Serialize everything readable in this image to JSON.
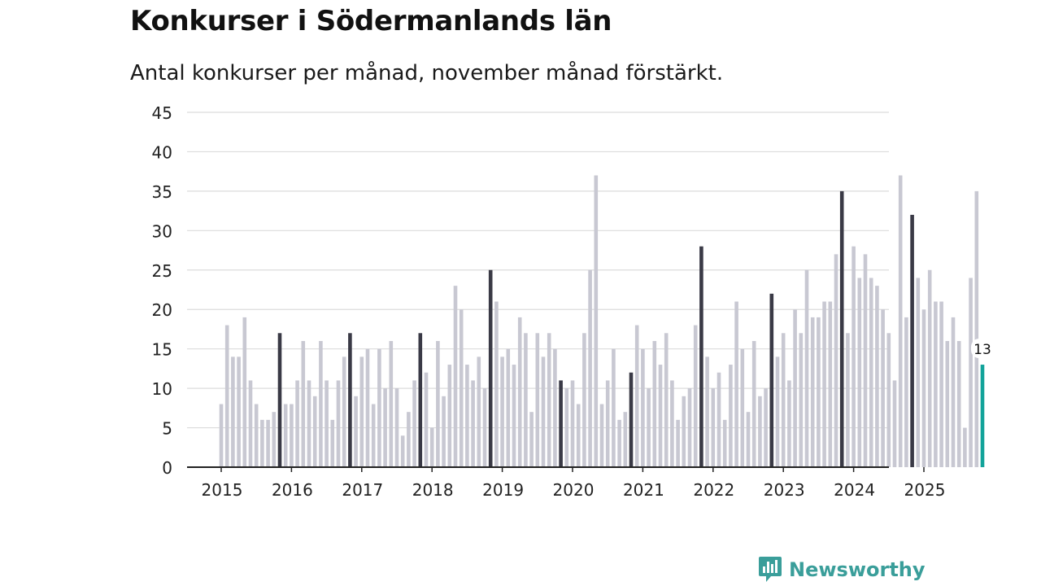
{
  "title": "Konkurser i Södermanlands län",
  "subtitle": "Antal konkurser per månad, november månad förstärkt.",
  "brand": {
    "name": "Newsworthy"
  },
  "colors": {
    "bar_default": "#c8c8d2",
    "bar_highlight": "#3a3a46",
    "bar_current": "#12a39a",
    "grid": "#dcdcdc",
    "axis": "#222222",
    "brand": "#3a9e9a"
  },
  "chart_data": {
    "type": "bar",
    "title": "Konkurser i Södermanlands län",
    "xlabel": "",
    "ylabel": "",
    "ylim": [
      0,
      45
    ],
    "yticks": [
      0,
      5,
      10,
      15,
      20,
      25,
      30,
      35,
      40,
      45
    ],
    "start": "2015-01",
    "highlight_month": "November",
    "x_tick_labels": [
      "2015",
      "2016",
      "2017",
      "2018",
      "2019",
      "2020",
      "2021",
      "2022",
      "2023",
      "2024",
      "2025"
    ],
    "values": [
      8,
      18,
      14,
      14,
      19,
      11,
      8,
      6,
      6,
      7,
      17,
      8,
      8,
      11,
      16,
      11,
      9,
      16,
      11,
      6,
      11,
      14,
      17,
      9,
      14,
      15,
      8,
      15,
      10,
      16,
      10,
      4,
      7,
      11,
      17,
      12,
      5,
      16,
      9,
      13,
      23,
      20,
      13,
      11,
      14,
      10,
      25,
      21,
      14,
      15,
      13,
      19,
      17,
      7,
      17,
      14,
      17,
      15,
      11,
      10,
      11,
      8,
      17,
      25,
      37,
      8,
      11,
      15,
      6,
      7,
      12,
      18,
      15,
      10,
      16,
      13,
      17,
      11,
      6,
      9,
      10,
      18,
      28,
      14,
      10,
      12,
      6,
      13,
      21,
      15,
      7,
      16,
      9,
      10,
      22,
      14,
      17,
      11,
      20,
      17,
      25,
      19,
      19,
      21,
      21,
      27,
      35,
      17,
      28,
      24,
      27,
      24,
      23,
      20,
      17,
      11,
      37,
      19,
      32,
      24,
      20,
      25,
      21,
      21,
      16,
      19,
      16,
      5,
      24,
      35,
      13
    ],
    "highlight_indices": [
      10,
      22,
      34,
      46,
      58,
      70,
      82,
      94,
      106,
      118
    ],
    "current_index": 130,
    "data_labels": [
      {
        "index": 130,
        "text": "13"
      }
    ]
  }
}
